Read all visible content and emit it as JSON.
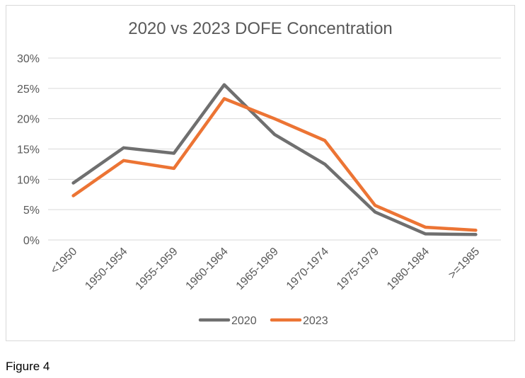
{
  "figure_caption": "Figure 4",
  "chart_data": {
    "type": "line",
    "title": "2020 vs 2023 DOFE Concentration",
    "categories": [
      "<1950",
      "1950-1954",
      "1955-1959",
      "1960-1964",
      "1965-1969",
      "1970-1974",
      "1975-1979",
      "1980-1984",
      ">=1985"
    ],
    "ylim": [
      0,
      30
    ],
    "ytick_labels": [
      "0%",
      "5%",
      "10%",
      "15%",
      "20%",
      "25%",
      "30%"
    ],
    "ytick_values": [
      0,
      5,
      10,
      15,
      20,
      25,
      30
    ],
    "grid": true,
    "legend_position": "bottom",
    "series": [
      {
        "name": "2020",
        "color": "#6f6f6f",
        "values": [
          9.4,
          15.2,
          14.3,
          25.6,
          17.4,
          12.5,
          4.6,
          1.0,
          0.9
        ]
      },
      {
        "name": "2023",
        "color": "#ec7434",
        "values": [
          7.3,
          13.1,
          11.8,
          23.3,
          20.0,
          16.4,
          5.7,
          2.1,
          1.6
        ]
      }
    ]
  }
}
